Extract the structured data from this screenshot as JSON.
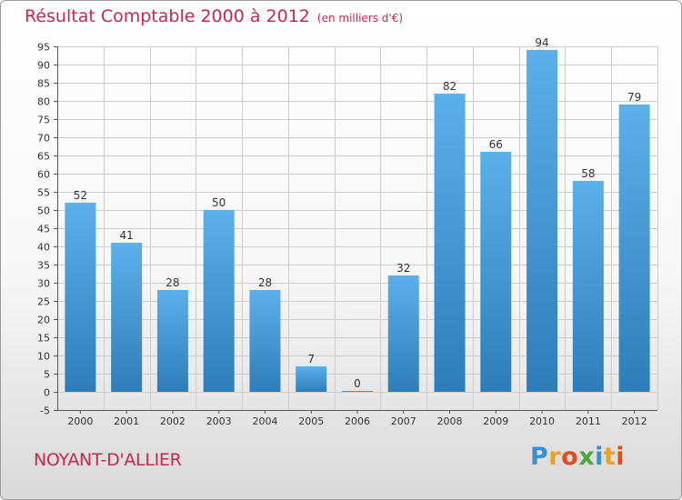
{
  "chart_data": {
    "type": "bar",
    "title": "Résultat Comptable 2000 à 2012",
    "subtitle": "(en milliers d'€)",
    "categories": [
      "2000",
      "2001",
      "2002",
      "2003",
      "2004",
      "2005",
      "2006",
      "2007",
      "2008",
      "2009",
      "2010",
      "2011",
      "2012"
    ],
    "values": [
      52,
      41,
      28,
      50,
      28,
      7,
      0,
      32,
      82,
      66,
      94,
      58,
      79
    ],
    "ylim": [
      -5,
      95
    ],
    "ytick_step": 5,
    "xlabel": "",
    "ylabel": "",
    "grid": true,
    "show_data_labels": true,
    "colors": {
      "bar_top": "#5cb0ea",
      "bar_bottom": "#2e7db8",
      "grid": "#cccccc",
      "axis": "#555555",
      "title": "#c4284e"
    }
  },
  "footer": {
    "place": "NOYANT-D'ALLIER"
  },
  "brand": {
    "letters": [
      {
        "ch": "P",
        "color": "#3b8ed0"
      },
      {
        "ch": "r",
        "color": "#f0a020"
      },
      {
        "ch": "o",
        "color": "#e8491d"
      },
      {
        "ch": "x",
        "color": "#4aa83c"
      },
      {
        "ch": "i",
        "color": "#3b8ed0"
      },
      {
        "ch": "t",
        "color": "#f0a020"
      },
      {
        "ch": "i",
        "color": "#e8491d"
      }
    ]
  }
}
